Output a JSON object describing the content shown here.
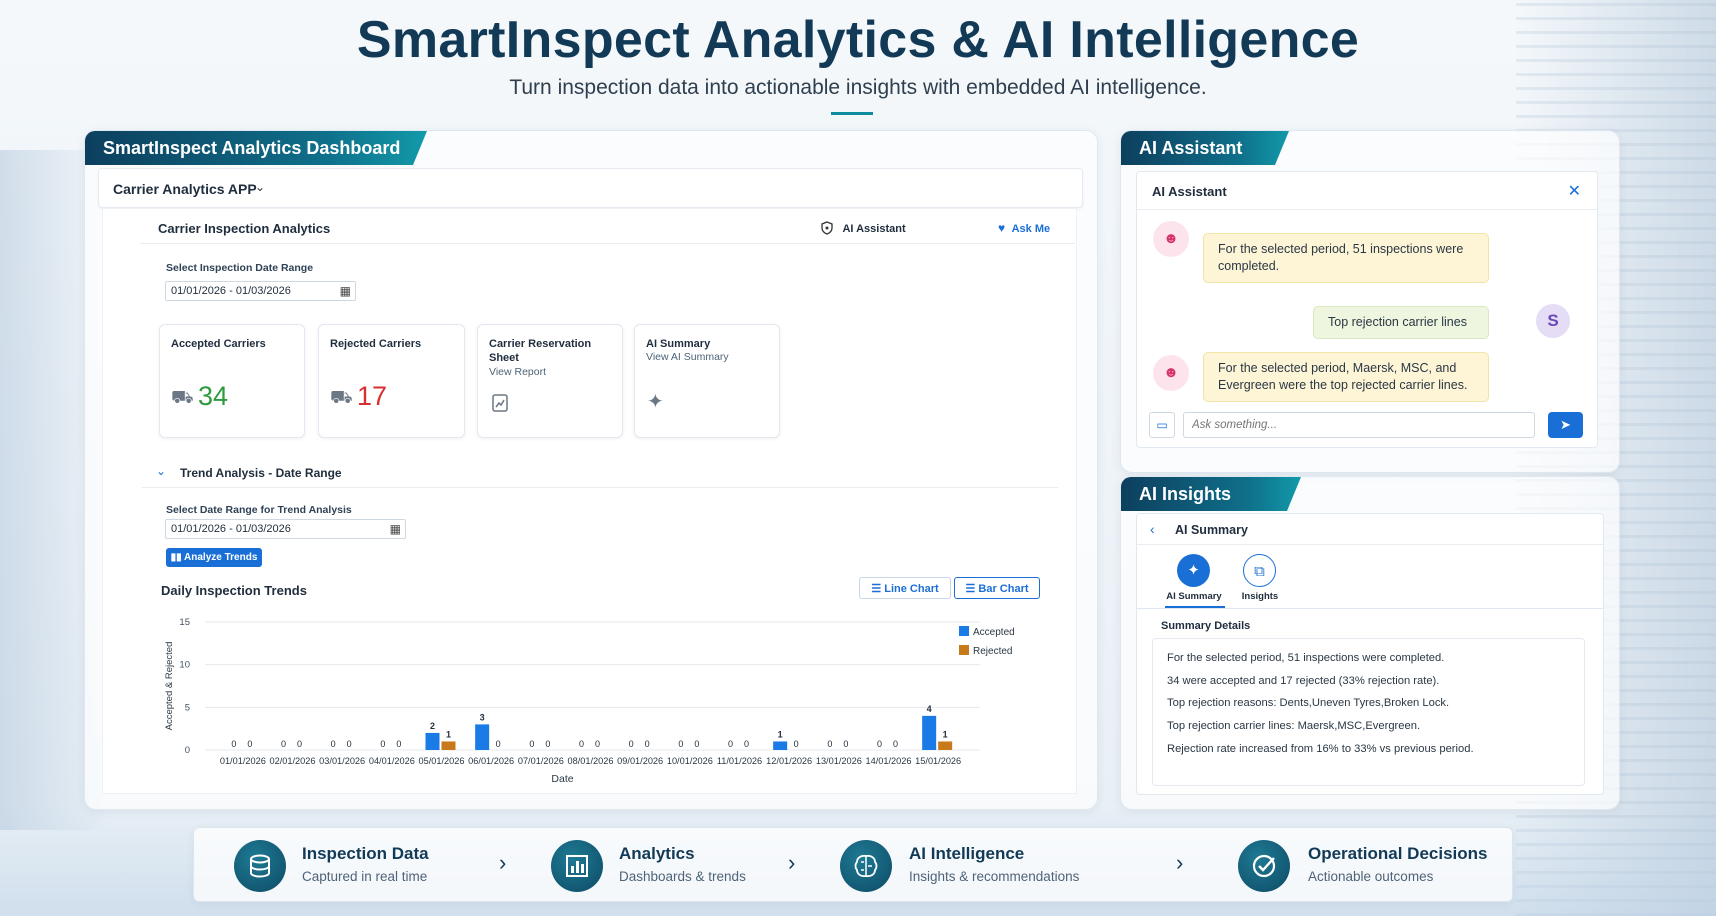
{
  "header": {
    "title": "SmartInspect Analytics & AI Intelligence",
    "subtitle": "Turn inspection data into actionable insights with embedded AI intelligence."
  },
  "dashboard": {
    "ribbon": "SmartInspect Analytics Dashboard",
    "app_name": "Carrier Analytics APP",
    "section_title": "Carrier Inspection Analytics",
    "ai_assistant_label": "AI Assistant",
    "ask_me_label": "Ask Me",
    "date_range_label": "Select Inspection Date Range",
    "date_range_value": "01/01/2026 - 01/03/2026",
    "cards": {
      "accepted": {
        "title": "Accepted Carriers",
        "value": "34",
        "color": "#2e9a3e"
      },
      "rejected": {
        "title": "Rejected Carriers",
        "value": "17",
        "color": "#d62f2f"
      },
      "reservation": {
        "title": "Carrier Reservation Sheet",
        "link": "View Report"
      },
      "summary": {
        "title": "AI Summary",
        "link": "View AI Summary"
      }
    },
    "trend": {
      "section_title": "Trend Analysis - Date Range",
      "range_label": "Select Date Range for Trend Analysis",
      "range_value": "01/01/2026 - 01/03/2026",
      "analyze_button": "Analyze Trends",
      "chart_title": "Daily Inspection Trends",
      "line_chart_button": "Line Chart",
      "bar_chart_button": "Bar Chart"
    }
  },
  "chart_data": {
    "type": "bar",
    "title": "Daily Inspection Trends",
    "xlabel": "Date",
    "ylabel": "Accepted & Rejected",
    "ylim": [
      0,
      15
    ],
    "yticks": [
      0,
      5,
      10,
      15
    ],
    "legend_position": "top-right",
    "grid": true,
    "categories": [
      "01/01/2026",
      "02/01/2026",
      "03/01/2026",
      "04/01/2026",
      "05/01/2026",
      "06/01/2026",
      "07/01/2026",
      "08/01/2026",
      "09/01/2026",
      "10/01/2026",
      "11/01/2026",
      "12/01/2026",
      "13/01/2026",
      "14/01/2026",
      "15/01/2026"
    ],
    "series": [
      {
        "name": "Accepted",
        "color": "#1a7ae6",
        "values": [
          0,
          0,
          0,
          0,
          2,
          3,
          0,
          0,
          0,
          0,
          0,
          1,
          0,
          0,
          4
        ]
      },
      {
        "name": "Rejected",
        "color": "#c8791a",
        "values": [
          0,
          0,
          0,
          0,
          1,
          0,
          0,
          0,
          0,
          0,
          0,
          0,
          0,
          0,
          1
        ]
      }
    ]
  },
  "assistant": {
    "ribbon": "AI Assistant",
    "header": "AI Assistant",
    "messages": [
      {
        "from": "bot",
        "text": "For the selected period, 51 inspections were completed."
      },
      {
        "from": "user",
        "text": "Top rejection carrier lines",
        "avatar": "S"
      },
      {
        "from": "bot",
        "text": "For the selected period, Maersk, MSC, and Evergreen were the top rejected carrier lines."
      }
    ],
    "input_placeholder": "Ask something..."
  },
  "insights": {
    "ribbon": "AI Insights",
    "header": "AI Summary",
    "tabs": [
      {
        "label": "AI Summary"
      },
      {
        "label": "Insights"
      }
    ],
    "summary_title": "Summary Details",
    "summary_lines": [
      "For the selected period, 51 inspections were completed.",
      "34 were accepted and 17 rejected (33% rejection rate).",
      "Top rejection reasons: Dents,Uneven Tyres,Broken Lock.",
      "Top rejection carrier lines: Maersk,MSC,Evergreen.",
      "Rejection rate increased from 16% to 33% vs previous period."
    ]
  },
  "flow": [
    {
      "title": "Inspection Data",
      "subtitle": "Captured in real time",
      "icon": "database-icon"
    },
    {
      "title": "Analytics",
      "subtitle": "Dashboards & trends",
      "icon": "bar-chart-icon"
    },
    {
      "title": "AI Intelligence",
      "subtitle": "Insights & recommendations",
      "icon": "brain-icon"
    },
    {
      "title": "Operational Decisions",
      "subtitle": "Actionable outcomes",
      "icon": "check-circle-icon"
    }
  ]
}
